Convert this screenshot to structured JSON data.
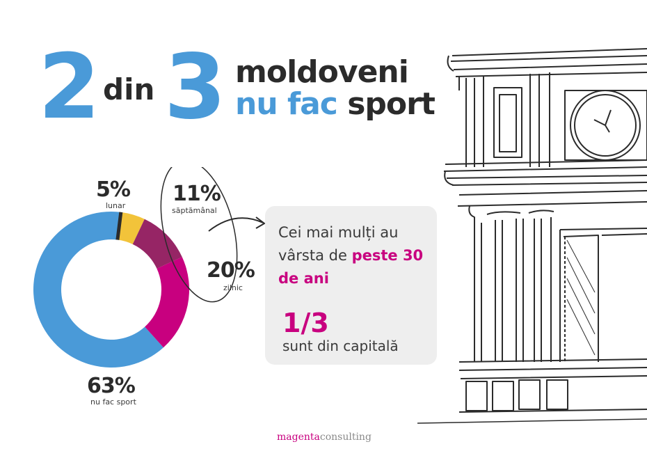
{
  "headline": {
    "num_a": "2",
    "din": "din",
    "num_b": "3",
    "line1": "moldoveni",
    "line2_accent": "nu fac",
    "line2_rest": "sport"
  },
  "colors": {
    "blue": "#4a9ad8",
    "magenta": "#c8007f",
    "purple": "#962565",
    "yellow": "#f2c33a",
    "dark": "#2b2b2b"
  },
  "chart_data": {
    "type": "pie",
    "variant": "donut",
    "series": [
      {
        "name": "nu fac sport",
        "value": 63,
        "label": "63%",
        "color": "#4a9ad8"
      },
      {
        "name": "lunar",
        "value": 5,
        "label": "5%",
        "color": "#f2c33a"
      },
      {
        "name": "săptămânal",
        "value": 11,
        "label": "11%",
        "color": "#962565"
      },
      {
        "name": "zilnic",
        "value": 20,
        "label": "20%",
        "color": "#c8007f"
      }
    ]
  },
  "labels": {
    "monthly_pct": "5%",
    "monthly_txt": "lunar",
    "weekly_pct": "11%",
    "weekly_txt": "săptămânal",
    "daily_pct": "20%",
    "daily_txt": "zilnic",
    "none_pct": "63%",
    "none_txt": "nu fac sport"
  },
  "card": {
    "text_a": "Cei mai mulți au vârsta de ",
    "text_highlight": "peste 30 de ani",
    "ratio": "1/3",
    "ratio_sub": "sunt din capitală"
  },
  "brand": {
    "part1": "magenta",
    "part2": "consulting"
  },
  "icons": {
    "illustration": "building-sketch-icon",
    "arrow": "curved-arrow-icon"
  }
}
